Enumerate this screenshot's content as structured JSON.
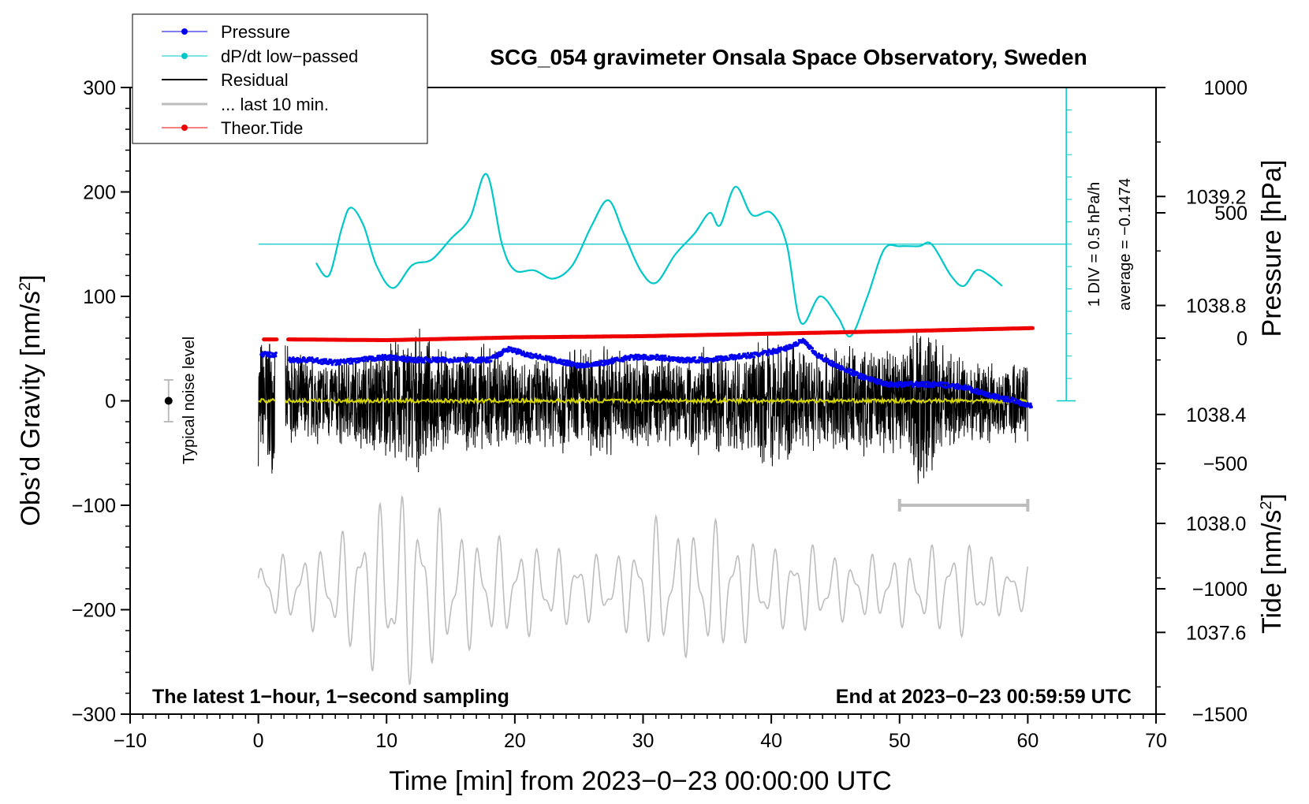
{
  "chart_data": {
    "type": "line",
    "title": "SCG_054 gravimeter Onsala Space Observatory, Sweden",
    "xlabel": "Time [min] from 2023−0−23 00:00:00 UTC",
    "ylabel_left": "Obs’d Gravity [nm/s²]",
    "ylabel_left_main": "Obs’d Gravity [nm/s",
    "ylabel_left_sup": "2",
    "ylabel_left_end": "]",
    "ylabel_right_pressure": "Pressure [hPa]",
    "ylabel_right_tide": "Tide [nm/s²]",
    "ylabel_right_tide_main": "Tide [nm/s",
    "ylabel_right_tide_sup": "2",
    "ylabel_right_tide_end": "]",
    "xlim": [
      -10,
      70
    ],
    "ylim": [
      -300,
      300
    ],
    "pressure_range": [
      1037.3,
      1039.6
    ],
    "tide_range": [
      -1500,
      1000
    ],
    "x_ticks": [
      -10,
      0,
      10,
      20,
      30,
      40,
      50,
      60,
      70
    ],
    "x_tick_labels": [
      "−10",
      "0",
      "10",
      "20",
      "30",
      "40",
      "50",
      "60",
      "70"
    ],
    "y_ticks": [
      -300,
      -200,
      -100,
      0,
      100,
      200,
      300
    ],
    "y_tick_labels": [
      "−300",
      "−200",
      "−100",
      "0",
      "100",
      "200",
      "300"
    ],
    "pressure_ticks": [
      1037.6,
      1038.0,
      1038.4,
      1038.8,
      1039.2
    ],
    "pressure_tick_labels": [
      "1037.6",
      "1038.0",
      "1038.4",
      "1038.8",
      "1039.2"
    ],
    "tide_ticks": [
      -1500,
      -1000,
      -500,
      0,
      500,
      1000
    ],
    "tide_tick_labels": [
      "−1500",
      "−1000",
      "−500",
      "0",
      "500",
      "1000"
    ],
    "legend": {
      "position": "top-left",
      "entries": [
        {
          "label": "Pressure",
          "color": "#0000ee",
          "marker": true
        },
        {
          "label": "dP/dt low−passed",
          "color": "#00c8c8",
          "marker": true
        },
        {
          "label": "Residual",
          "color": "#000000",
          "marker": false
        },
        {
          "label": "... last 10 min.",
          "color": "#bdbdbd",
          "marker": false
        },
        {
          "label": "Theor.Tide",
          "color": "#ee0000",
          "marker": true
        }
      ]
    },
    "annotations": {
      "bottom_left": "The latest 1−hour, 1−second sampling",
      "bottom_right": "End at 2023−0−23 00:59:59 UTC",
      "noise_label": "Typical noise level",
      "dpdt_div": "1 DIV = 0.5 hPa/h",
      "dpdt_average": "average = −0.1474"
    },
    "colors": {
      "pressure": "#0000ee",
      "dpdt": "#00c8c8",
      "residual": "#000000",
      "residual_smooth": "#d4d400",
      "last10": "#bdbdbd",
      "tide": "#ee0000"
    },
    "series": [
      {
        "name": "Pressure",
        "axis": "pressure",
        "x": [
          0.2,
          1.4,
          2.4,
          4,
          6,
          8,
          10,
          12,
          14,
          16,
          18,
          19.5,
          21,
          23,
          25,
          27,
          29,
          31,
          33,
          35,
          37,
          39,
          41,
          42.5,
          43.5,
          45,
          47,
          49,
          51,
          53,
          55,
          57,
          59,
          60.3
        ],
        "y": [
          1038.62,
          1038.62,
          1038.6,
          1038.6,
          1038.59,
          1038.6,
          1038.61,
          1038.6,
          1038.6,
          1038.6,
          1038.6,
          1038.64,
          1038.62,
          1038.6,
          1038.58,
          1038.59,
          1038.61,
          1038.61,
          1038.6,
          1038.6,
          1038.61,
          1038.62,
          1038.64,
          1038.67,
          1038.62,
          1038.58,
          1038.54,
          1038.51,
          1038.51,
          1038.51,
          1038.5,
          1038.47,
          1038.45,
          1038.43
        ]
      },
      {
        "name": "dP/dt low−passed",
        "axis": "gravity",
        "baseline": 150,
        "x": [
          4.5,
          5.5,
          6.5,
          7.2,
          8.2,
          9.2,
          10.5,
          12,
          13.5,
          15,
          16.5,
          17.8,
          19,
          20,
          21.5,
          23,
          24.5,
          26,
          27.3,
          28.5,
          29.8,
          31,
          32.5,
          34,
          35.2,
          36,
          37.2,
          38.5,
          40,
          41.2,
          42.3,
          43.8,
          45.2,
          46.2,
          47.5,
          48.8,
          50,
          51.5,
          52.5,
          54,
          55,
          56,
          57,
          58
        ],
        "y": [
          132,
          120,
          165,
          185,
          168,
          130,
          108,
          130,
          135,
          155,
          175,
          217,
          150,
          125,
          125,
          117,
          130,
          168,
          192,
          160,
          125,
          113,
          140,
          160,
          180,
          168,
          205,
          178,
          180,
          150,
          75,
          100,
          80,
          62,
          100,
          145,
          148,
          148,
          150,
          120,
          110,
          125,
          120,
          110
        ]
      },
      {
        "name": "Residual",
        "axis": "gravity",
        "segments": [
          [
            0,
            1.3
          ],
          [
            2.1,
            60
          ]
        ],
        "envelope_x": [
          0,
          1,
          1.3,
          2.1,
          4,
          6,
          8,
          10,
          12,
          14,
          16,
          18,
          20,
          22,
          24,
          26,
          28,
          30,
          32,
          34,
          36,
          38,
          40,
          42,
          44,
          46,
          48,
          50,
          51,
          52,
          53,
          54,
          56,
          58,
          60
        ],
        "envelope_amplitude": [
          65,
          75,
          65,
          55,
          45,
          45,
          50,
          60,
          75,
          55,
          50,
          60,
          50,
          45,
          55,
          60,
          55,
          50,
          45,
          55,
          55,
          50,
          70,
          55,
          55,
          60,
          55,
          60,
          85,
          90,
          65,
          50,
          45,
          40,
          45
        ],
        "smooth_level": 0
      },
      {
        "name": "... last 10 min.",
        "axis": "gravity",
        "x_range": [
          0,
          60
        ],
        "baseline": -180,
        "envelope_x": [
          0,
          3,
          6,
          9,
          11,
          13,
          16,
          19,
          22,
          25,
          28,
          31,
          33,
          35,
          37,
          40,
          43,
          46,
          49,
          52,
          54,
          56,
          58,
          60
        ],
        "envelope_amplitude": [
          30,
          35,
          50,
          85,
          100,
          90,
          60,
          50,
          45,
          35,
          35,
          70,
          65,
          70,
          60,
          40,
          45,
          30,
          35,
          40,
          50,
          45,
          25,
          25
        ]
      },
      {
        "name": "Theor.Tide",
        "axis": "tide",
        "x": [
          0.5,
          1.4,
          2.4,
          10,
          20,
          30,
          40,
          50,
          60.3
        ],
        "y": [
          -5,
          -5,
          -5,
          -8,
          3,
          8,
          18,
          28,
          40
        ]
      }
    ],
    "noise_bar": {
      "x": -7,
      "center": 0,
      "half_width": 20
    },
    "last10_bar": {
      "x_start": 50,
      "x_end": 60,
      "y": -100
    }
  }
}
